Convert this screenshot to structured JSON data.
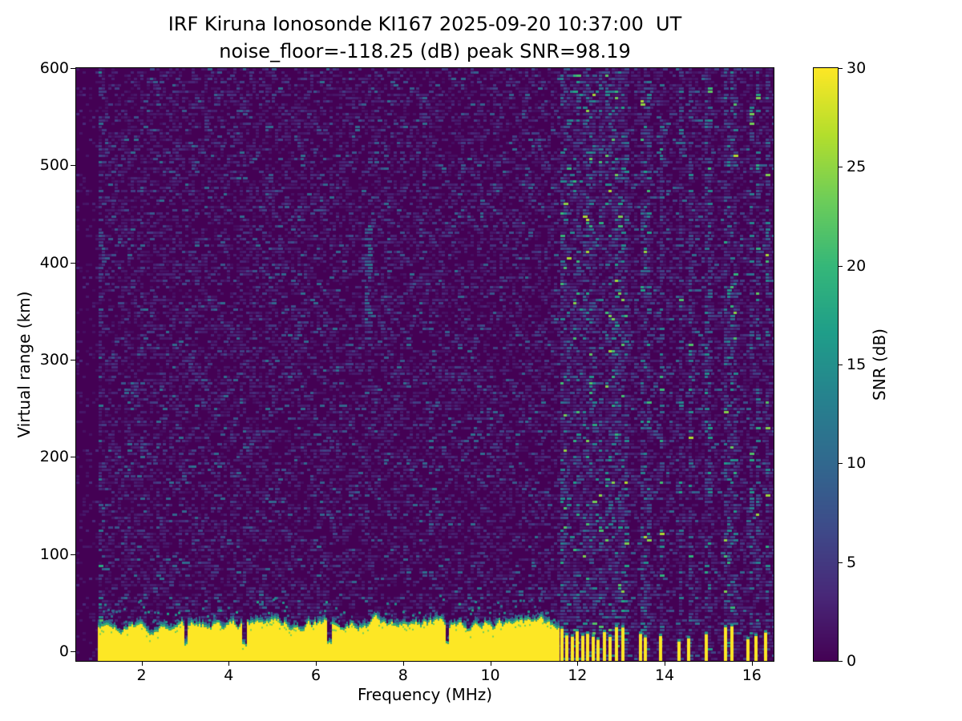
{
  "chart_data": {
    "type": "heatmap",
    "title": "IRF Kiruna Ionosonde KI167 2025-09-20 10:37:00  UT",
    "subtitle": "noise_floor=-118.25 (dB) peak SNR=98.19",
    "xlabel": "Frequency (MHz)",
    "ylabel": "Virtual range (km)",
    "xlim": [
      0.5,
      16.5
    ],
    "ylim": [
      -10,
      600
    ],
    "xticks": [
      2,
      4,
      6,
      8,
      10,
      12,
      14,
      16
    ],
    "yticks": [
      0,
      100,
      200,
      300,
      400,
      500,
      600
    ],
    "noise_floor_db": -118.25,
    "peak_snr_db": 98.19,
    "colorbar": {
      "label": "SNR (dB)",
      "min": 0,
      "max": 30,
      "ticks": [
        0,
        5,
        10,
        15,
        20,
        25,
        30
      ],
      "colormap": "viridis",
      "colors": [
        "#440154",
        "#482878",
        "#3e4a89",
        "#31688e",
        "#26828e",
        "#1f9e89",
        "#35b779",
        "#6dcd59",
        "#b4de2c",
        "#fde725"
      ]
    },
    "features": {
      "background_snr_db": [
        0,
        3
      ],
      "ground_echo_band": {
        "freq_mhz": [
          1.0,
          11.57
        ],
        "top_km_mean": 27,
        "top_km_range": [
          12,
          42
        ],
        "snr_db": 30
      },
      "band_notches_mhz": [
        3.0,
        4.35,
        6.3,
        9.0
      ],
      "sporadic_stripes_mhz": [
        11.65,
        11.76,
        11.88,
        12.0,
        12.12,
        12.24,
        12.36,
        12.48,
        12.62,
        12.75,
        12.9,
        13.05,
        13.45,
        13.56,
        13.9,
        14.33,
        14.55,
        14.95,
        15.4,
        15.55,
        15.92,
        16.1,
        16.32
      ],
      "stripe_height_km": [
        10,
        26
      ],
      "noisy_columns_mhz": [
        1.02
      ],
      "noise_streak": {
        "freq_mhz": 7.15,
        "range_km": [
          320,
          440
        ]
      }
    }
  }
}
